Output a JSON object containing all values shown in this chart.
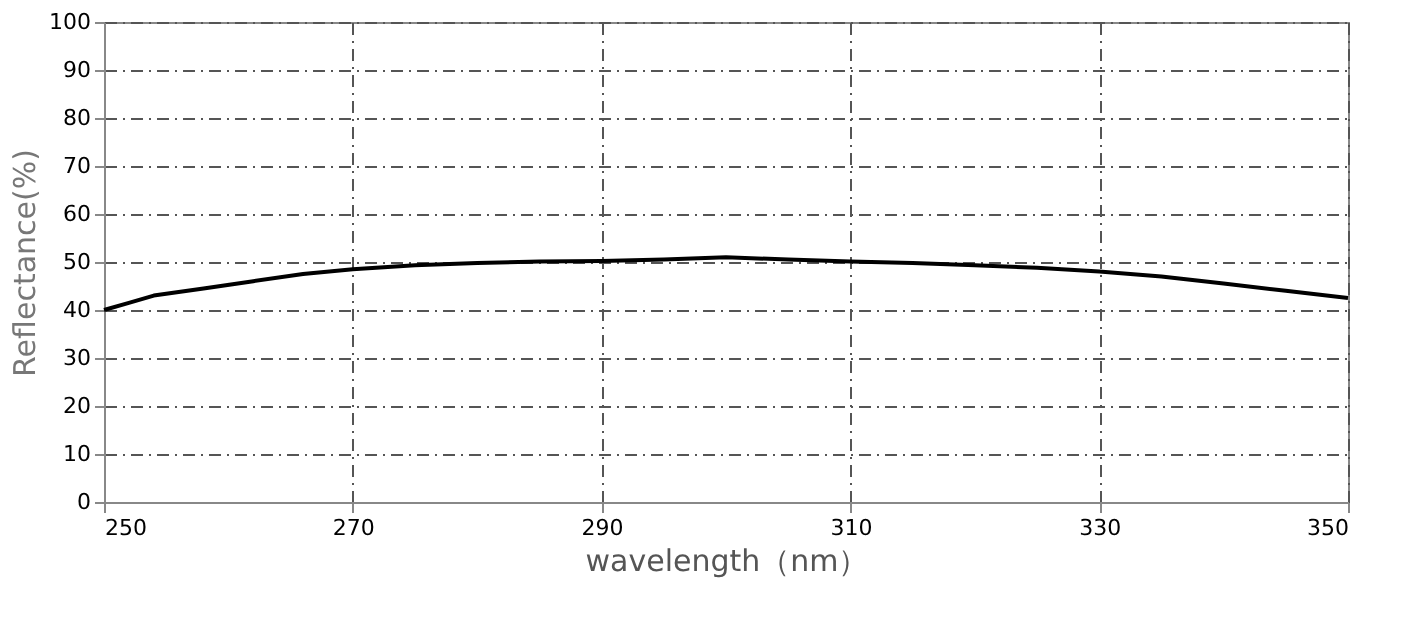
{
  "chart_data": {
    "type": "line",
    "xlabel": "wavelength（nm）",
    "ylabel": "Reflectance(%)",
    "x": [
      250,
      252,
      254,
      258,
      262,
      266,
      270,
      275,
      280,
      285,
      290,
      295,
      300,
      305,
      310,
      315,
      320,
      325,
      330,
      335,
      340,
      345,
      350
    ],
    "series": [
      {
        "color": "#000000",
        "values": [
          40,
          41.5,
          43,
          44.5,
          46,
          47.5,
          48.5,
          49.3,
          49.8,
          50.1,
          50.2,
          50.5,
          51,
          50.5,
          50.1,
          49.8,
          49.3,
          48.8,
          48,
          47,
          45.5,
          44,
          42.5
        ]
      }
    ],
    "xlim": [
      250,
      350
    ],
    "xticks": [
      250,
      270,
      290,
      310,
      330,
      350
    ],
    "ylim": [
      0,
      100
    ],
    "yticks": [
      0,
      10,
      20,
      30,
      40,
      50,
      60,
      70,
      80,
      90,
      100
    ],
    "grid": true,
    "marker": "none",
    "line_style": "solid"
  }
}
